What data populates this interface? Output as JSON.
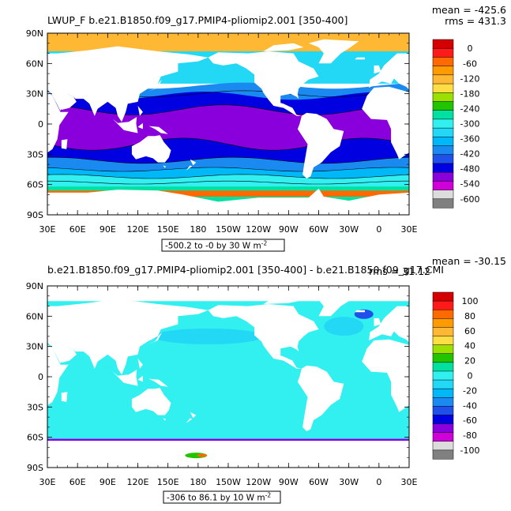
{
  "chart_data": [
    {
      "type": "heatmap",
      "title": "LWUP_F b.e21.B1850.f09_g17.PMIP4-pliomip2.001 [350-400]",
      "stats": {
        "mean": "mean = -425.6",
        "rms": "rms = 431.3"
      },
      "footer": "-500.2 to -0 by 30  W m",
      "footer_sup": "-2",
      "x_ticks": [
        "30E",
        "60E",
        "90E",
        "120E",
        "150E",
        "180",
        "150W",
        "120W",
        "90W",
        "60W",
        "30W",
        "0",
        "30E"
      ],
      "y_ticks": [
        "90N",
        "60N",
        "30N",
        "0",
        "30S",
        "60S",
        "90S"
      ],
      "xlim": [
        30,
        390
      ],
      "ylim": [
        -90,
        90
      ],
      "colorbar": {
        "labels": [
          "0",
          "-60",
          "-120",
          "-180",
          "-240",
          "-300",
          "-360",
          "-420",
          "-480",
          "-540",
          "-600"
        ],
        "colors": [
          "#d40000",
          "#ff1a1a",
          "#ff6a00",
          "#ff9a00",
          "#ffb833",
          "#ffdd44",
          "#9be000",
          "#22c400",
          "#00e0a0",
          "#33f0f0",
          "#22d8f4",
          "#00b8f8",
          "#1a8af0",
          "#2050ea",
          "#0000e0",
          "#8a00dc",
          "#d000d8",
          "#dcdcdc",
          "#808080"
        ]
      },
      "fields": {
        "arctic": "#ffb833",
        "north_mid": "#22d8f4",
        "north_sub": "#1a8af0",
        "north_sub_deep": "#0000e0",
        "tropics": "#8a00dc",
        "south_sub": "#0000e0",
        "south_mid": "#1a8af0",
        "south_high": "#00b8f8",
        "southern_ocean": "#33f0f0",
        "antarctic_edge": "#ff6a00"
      }
    },
    {
      "type": "heatmap",
      "title": "b.e21.B1850.f09_g17.PMIP4-pliomip2.001 [350-400] - b.e21.B1850.f09_g17.CMI",
      "stats": {
        "mean": "mean = -30.15",
        "rms": "rms = 31.12"
      },
      "footer": "-306 to 86.1 by 10  W m",
      "footer_sup": "-2",
      "x_ticks": [
        "30E",
        "60E",
        "90E",
        "120E",
        "150E",
        "180",
        "150W",
        "120W",
        "90W",
        "60W",
        "30W",
        "0",
        "30E"
      ],
      "y_ticks": [
        "90N",
        "60N",
        "30N",
        "0",
        "30S",
        "60S",
        "90S"
      ],
      "xlim": [
        30,
        390
      ],
      "ylim": [
        -90,
        90
      ],
      "colorbar": {
        "labels": [
          "100",
          "80",
          "60",
          "40",
          "20",
          "0",
          "-20",
          "-40",
          "-60",
          "-80",
          "-100"
        ],
        "colors": [
          "#d40000",
          "#ff1a1a",
          "#ff6a00",
          "#ff9a00",
          "#ffb833",
          "#ffdd44",
          "#9be000",
          "#22c400",
          "#00e0a0",
          "#33f0f0",
          "#22d8f4",
          "#00b8f8",
          "#1a8af0",
          "#2050ea",
          "#0000e0",
          "#8a00dc",
          "#d000d8",
          "#dcdcdc",
          "#808080"
        ]
      },
      "fields": {
        "ocean": "#33f0f0",
        "ocean_dark": "#22d8f4",
        "coast": "#2050ea",
        "antarctic_edge": "#8a00dc"
      }
    }
  ]
}
